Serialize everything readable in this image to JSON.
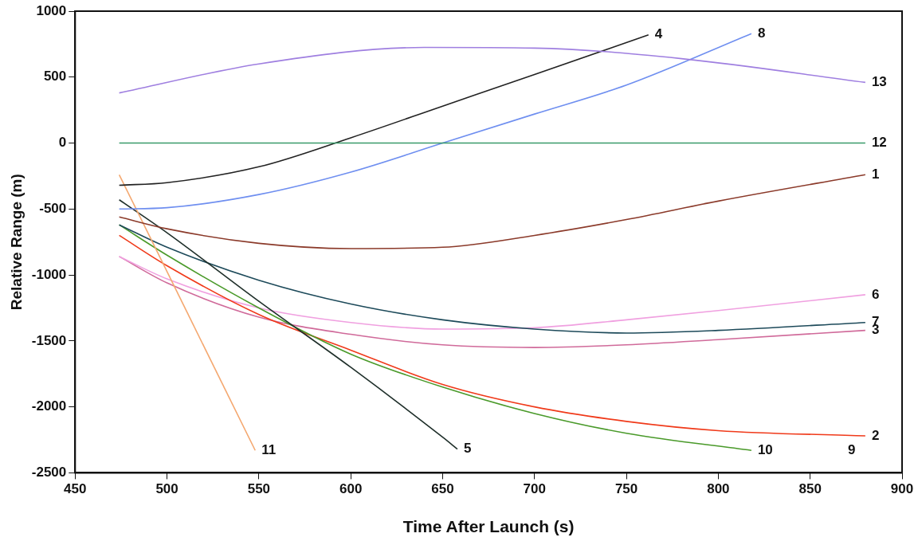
{
  "chart_data": {
    "type": "line",
    "xlabel": "Time After Launch (s)",
    "ylabel": "Relative Range (m)",
    "xlim": [
      450,
      900
    ],
    "xticks": [
      450,
      500,
      550,
      600,
      650,
      700,
      750,
      800,
      850,
      900
    ],
    "ylim": [
      -2500,
      1000
    ],
    "yticks": [
      -2500,
      -2000,
      -1500,
      -1000,
      -500,
      0,
      500,
      1000
    ],
    "grid": false,
    "legend": false,
    "marker": "none",
    "line_style": "solid",
    "series": [
      {
        "name": "13",
        "color": "#9f7fe0",
        "x": [
          474,
          550,
          640,
          700,
          780,
          880
        ],
        "values": [
          380,
          600,
          725,
          720,
          640,
          460
        ]
      },
      {
        "name": "12",
        "color": "#3a9a6a",
        "x": [
          474,
          880
        ],
        "values": [
          0,
          0
        ]
      },
      {
        "name": "4",
        "color": "#222222",
        "x": [
          474,
          500,
          550,
          600,
          650,
          700,
          762
        ],
        "values": [
          -320,
          -300,
          -180,
          40,
          280,
          520,
          820
        ]
      },
      {
        "name": "8",
        "color": "#6f8ff0",
        "x": [
          474,
          500,
          550,
          600,
          650,
          700,
          750,
          818
        ],
        "values": [
          -500,
          -490,
          -390,
          -220,
          0,
          220,
          440,
          830
        ]
      },
      {
        "name": "1",
        "color": "#8b3a2a",
        "x": [
          474,
          500,
          550,
          600,
          650,
          700,
          750,
          800,
          880
        ],
        "values": [
          -560,
          -650,
          -760,
          -800,
          -790,
          -700,
          -580,
          -440,
          -240
        ]
      },
      {
        "name": "11",
        "color": "#f4a870",
        "x": [
          474,
          548
        ],
        "values": [
          -240,
          -2330
        ]
      },
      {
        "name": "5",
        "color": "#1f2f2a",
        "x": [
          474,
          500,
          550,
          600,
          650,
          658
        ],
        "values": [
          -430,
          -680,
          -1200,
          -1700,
          -2230,
          -2320
        ]
      },
      {
        "name": "7",
        "color": "#1d4a5a",
        "x": [
          474,
          500,
          550,
          600,
          650,
          700,
          750,
          800,
          880
        ],
        "values": [
          -620,
          -790,
          -1040,
          -1220,
          -1340,
          -1410,
          -1440,
          -1420,
          -1360
        ]
      },
      {
        "name": "10",
        "color": "#4a9a2a",
        "x": [
          474,
          500,
          550,
          600,
          650,
          700,
          750,
          818
        ],
        "values": [
          -620,
          -850,
          -1250,
          -1600,
          -1850,
          -2050,
          -2200,
          -2330
        ]
      },
      {
        "name": "2",
        "color": "#f03a1a",
        "x": [
          474,
          500,
          550,
          600,
          650,
          700,
          750,
          800,
          880
        ],
        "values": [
          -700,
          -930,
          -1300,
          -1570,
          -1830,
          -2000,
          -2110,
          -2180,
          -2220
        ]
      },
      {
        "name": "6",
        "color": "#f0a0e0",
        "x": [
          474,
          500,
          550,
          600,
          650,
          700,
          750,
          800,
          880
        ],
        "values": [
          -860,
          -1030,
          -1250,
          -1360,
          -1410,
          -1400,
          -1340,
          -1270,
          -1150
        ]
      },
      {
        "name": "3",
        "color": "#d06a9a",
        "x": [
          474,
          500,
          550,
          600,
          650,
          700,
          750,
          800,
          880
        ],
        "values": [
          -860,
          -1060,
          -1320,
          -1450,
          -1530,
          -1550,
          -1530,
          -1490,
          -1420
        ]
      }
    ],
    "annotations": [
      "9"
    ]
  }
}
